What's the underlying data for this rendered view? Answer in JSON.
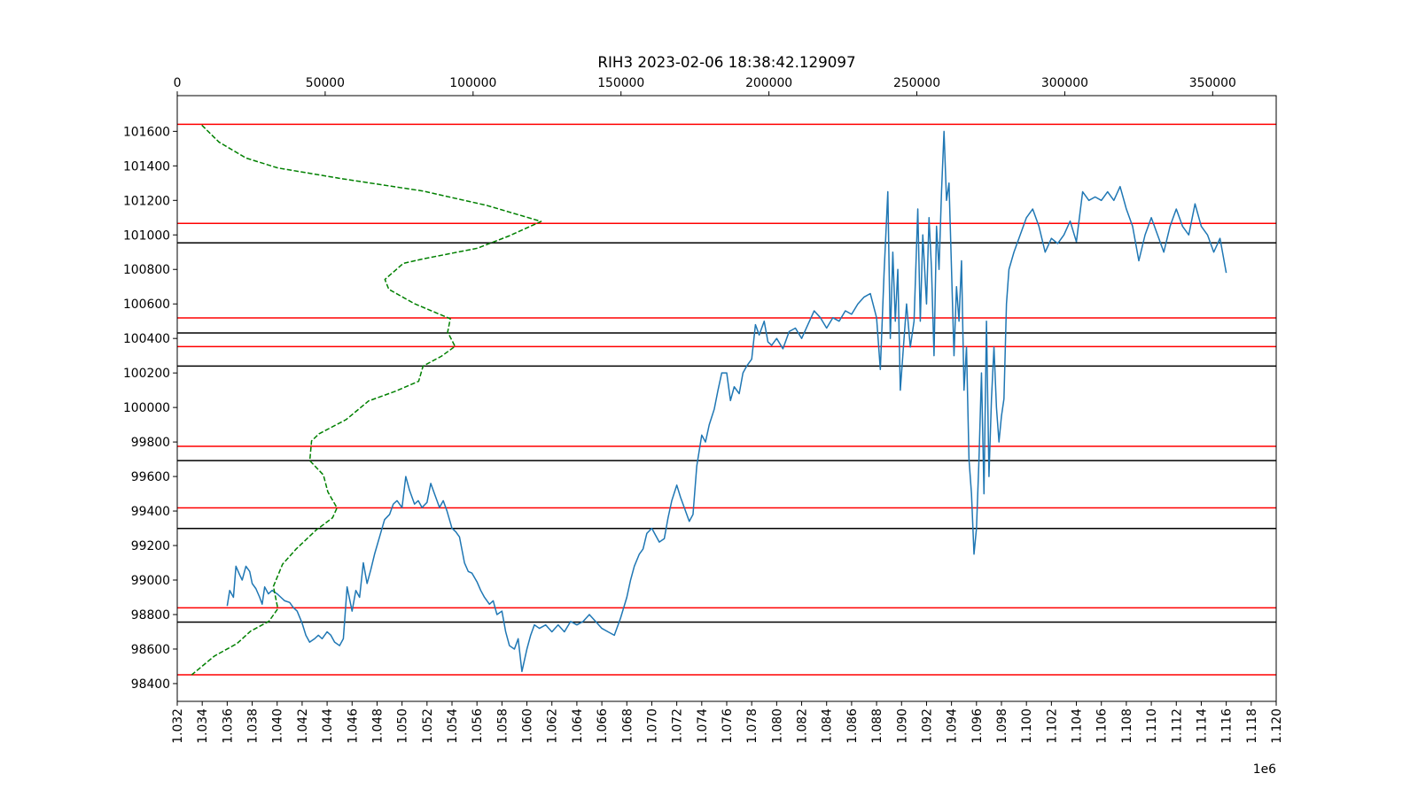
{
  "chart_data": {
    "type": "line",
    "title": "RIH3 2023-02-06 18:38:42.129097",
    "x_offset_label": "1e6",
    "xlim": [
      1032000,
      1120000
    ],
    "xticks": [
      {
        "value": 1032000,
        "label": "1.032"
      },
      {
        "value": 1034000,
        "label": "1.034"
      },
      {
        "value": 1036000,
        "label": "1.036"
      },
      {
        "value": 1038000,
        "label": "1.038"
      },
      {
        "value": 1040000,
        "label": "1.040"
      },
      {
        "value": 1042000,
        "label": "1.042"
      },
      {
        "value": 1044000,
        "label": "1.044"
      },
      {
        "value": 1046000,
        "label": "1.046"
      },
      {
        "value": 1048000,
        "label": "1.048"
      },
      {
        "value": 1050000,
        "label": "1.050"
      },
      {
        "value": 1052000,
        "label": "1.052"
      },
      {
        "value": 1054000,
        "label": "1.054"
      },
      {
        "value": 1056000,
        "label": "1.056"
      },
      {
        "value": 1058000,
        "label": "1.058"
      },
      {
        "value": 1060000,
        "label": "1.060"
      },
      {
        "value": 1062000,
        "label": "1.062"
      },
      {
        "value": 1064000,
        "label": "1.064"
      },
      {
        "value": 1066000,
        "label": "1.066"
      },
      {
        "value": 1068000,
        "label": "1.068"
      },
      {
        "value": 1070000,
        "label": "1.070"
      },
      {
        "value": 1072000,
        "label": "1.072"
      },
      {
        "value": 1074000,
        "label": "1.074"
      },
      {
        "value": 1076000,
        "label": "1.076"
      },
      {
        "value": 1078000,
        "label": "1.078"
      },
      {
        "value": 1080000,
        "label": "1.080"
      },
      {
        "value": 1082000,
        "label": "1.082"
      },
      {
        "value": 1084000,
        "label": "1.084"
      },
      {
        "value": 1086000,
        "label": "1.086"
      },
      {
        "value": 1088000,
        "label": "1.088"
      },
      {
        "value": 1090000,
        "label": "1.090"
      },
      {
        "value": 1092000,
        "label": "1.092"
      },
      {
        "value": 1094000,
        "label": "1.094"
      },
      {
        "value": 1096000,
        "label": "1.096"
      },
      {
        "value": 1098000,
        "label": "1.098"
      },
      {
        "value": 1100000,
        "label": "1.100"
      },
      {
        "value": 1102000,
        "label": "1.102"
      },
      {
        "value": 1104000,
        "label": "1.104"
      },
      {
        "value": 1106000,
        "label": "1.106"
      },
      {
        "value": 1108000,
        "label": "1.108"
      },
      {
        "value": 1110000,
        "label": "1.110"
      },
      {
        "value": 1112000,
        "label": "1.112"
      },
      {
        "value": 1114000,
        "label": "1.114"
      },
      {
        "value": 1116000,
        "label": "1.116"
      },
      {
        "value": 1118000,
        "label": "1.118"
      },
      {
        "value": 1120000,
        "label": "1.120"
      }
    ],
    "x2lim": [
      0,
      371472
    ],
    "x2ticks": [
      0,
      50000,
      100000,
      150000,
      200000,
      250000,
      300000,
      350000
    ],
    "ylim": [
      98297,
      101807
    ],
    "yticks": [
      98400,
      98600,
      98800,
      99000,
      99200,
      99400,
      99600,
      99800,
      100000,
      100200,
      100400,
      100600,
      100800,
      101000,
      101200,
      101400,
      101600
    ],
    "series": [
      {
        "color": "#1f77b4",
        "dashed": false,
        "x": [
          1036000,
          1036200,
          1036500,
          1036700,
          1037000,
          1037200,
          1037500,
          1037800,
          1038000,
          1038300,
          1038600,
          1038800,
          1039000,
          1039300,
          1039600,
          1040000,
          1040300,
          1040600,
          1041000,
          1041300,
          1041600,
          1042000,
          1042300,
          1042600,
          1043000,
          1043300,
          1043600,
          1044000,
          1044300,
          1044600,
          1045000,
          1045300,
          1045600,
          1046000,
          1046300,
          1046600,
          1046900,
          1047200,
          1047500,
          1047800,
          1048200,
          1048600,
          1049000,
          1049300,
          1049600,
          1050000,
          1050300,
          1050600,
          1051000,
          1051300,
          1051600,
          1052000,
          1052300,
          1052600,
          1053000,
          1053300,
          1053600,
          1054000,
          1054300,
          1054600,
          1055000,
          1055300,
          1055600,
          1056000,
          1056300,
          1056600,
          1057000,
          1057300,
          1057600,
          1058000,
          1058300,
          1058600,
          1059000,
          1059300,
          1059600,
          1060000,
          1060300,
          1060600,
          1061000,
          1061500,
          1062000,
          1062500,
          1063000,
          1063500,
          1064000,
          1064500,
          1065000,
          1065500,
          1066000,
          1066500,
          1067000,
          1067500,
          1068000,
          1068300,
          1068600,
          1069000,
          1069300,
          1069600,
          1070000,
          1070300,
          1070600,
          1071000,
          1071300,
          1071600,
          1072000,
          1072300,
          1072600,
          1073000,
          1073300,
          1073600,
          1074000,
          1074300,
          1074600,
          1075000,
          1075300,
          1075600,
          1076000,
          1076300,
          1076600,
          1077000,
          1077300,
          1077600,
          1078000,
          1078300,
          1078600,
          1079000,
          1079300,
          1079600,
          1080000,
          1080500,
          1081000,
          1081500,
          1082000,
          1082500,
          1083000,
          1083500,
          1084000,
          1084500,
          1085000,
          1085500,
          1086000,
          1086500,
          1087000,
          1087500,
          1088000,
          1088300,
          1088600,
          1088900,
          1089100,
          1089300,
          1089500,
          1089700,
          1089900,
          1090100,
          1090400,
          1090700,
          1091000,
          1091300,
          1091500,
          1091700,
          1092000,
          1092200,
          1092400,
          1092600,
          1092800,
          1093000,
          1093200,
          1093400,
          1093600,
          1093800,
          1094000,
          1094200,
          1094400,
          1094600,
          1094800,
          1095000,
          1095200,
          1095400,
          1095600,
          1095800,
          1096000,
          1096200,
          1096400,
          1096600,
          1096800,
          1097000,
          1097200,
          1097400,
          1097600,
          1097800,
          1098000,
          1098200,
          1098400,
          1098600,
          1098800,
          1099000,
          1099500,
          1100000,
          1100500,
          1101000,
          1101500,
          1102000,
          1102500,
          1103000,
          1103500,
          1104000,
          1104500,
          1105000,
          1105500,
          1106000,
          1106500,
          1107000,
          1107500,
          1108000,
          1108500,
          1109000,
          1109500,
          1110000,
          1110500,
          1111000,
          1111500,
          1112000,
          1112500,
          1113000,
          1113500,
          1114000,
          1114500,
          1115000,
          1115500,
          1116000
        ],
        "values": [
          98850,
          98940,
          98900,
          99080,
          99030,
          99000,
          99080,
          99050,
          98980,
          98950,
          98900,
          98860,
          98960,
          98920,
          98940,
          98920,
          98900,
          98880,
          98870,
          98840,
          98820,
          98750,
          98680,
          98640,
          98660,
          98680,
          98660,
          98700,
          98680,
          98640,
          98620,
          98660,
          98960,
          98820,
          98940,
          98900,
          99100,
          98980,
          99060,
          99150,
          99250,
          99350,
          99380,
          99440,
          99460,
          99420,
          99600,
          99520,
          99440,
          99460,
          99420,
          99450,
          99560,
          99500,
          99420,
          99460,
          99400,
          99300,
          99280,
          99250,
          99100,
          99050,
          99040,
          98990,
          98940,
          98900,
          98860,
          98880,
          98800,
          98820,
          98700,
          98620,
          98600,
          98660,
          98470,
          98600,
          98680,
          98740,
          98720,
          98740,
          98700,
          98740,
          98700,
          98760,
          98740,
          98760,
          98800,
          98760,
          98720,
          98700,
          98680,
          98780,
          98900,
          99000,
          99080,
          99150,
          99180,
          99270,
          99300,
          99260,
          99220,
          99240,
          99360,
          99460,
          99550,
          99480,
          99420,
          99340,
          99380,
          99660,
          99840,
          99800,
          99900,
          99990,
          100100,
          100200,
          100200,
          100040,
          100120,
          100080,
          100200,
          100240,
          100280,
          100480,
          100420,
          100500,
          100380,
          100360,
          100400,
          100340,
          100440,
          100460,
          100400,
          100480,
          100560,
          100520,
          100460,
          100520,
          100500,
          100560,
          100540,
          100600,
          100640,
          100660,
          100520,
          100220,
          100780,
          101250,
          100400,
          100900,
          100500,
          100800,
          100100,
          100300,
          100600,
          100350,
          100500,
          101150,
          100500,
          101000,
          100600,
          101100,
          100800,
          100300,
          101050,
          100800,
          101250,
          101600,
          101200,
          101300,
          100800,
          100300,
          100700,
          100500,
          100850,
          100100,
          100350,
          99700,
          99500,
          99150,
          99300,
          99700,
          100200,
          99500,
          100500,
          99600,
          100050,
          100350,
          100000,
          99800,
          99950,
          100050,
          100600,
          100800,
          100850,
          100900,
          101000,
          101100,
          101150,
          101050,
          100900,
          100980,
          100950,
          101000,
          101080,
          100960,
          101250,
          101200,
          101220,
          101200,
          101250,
          101200,
          101280,
          101150,
          101050,
          100850,
          101000,
          101100,
          101000,
          100900,
          101050,
          101150,
          101050,
          101000,
          101180,
          101050,
          101000,
          100900,
          100980,
          100780
        ]
      },
      {
        "color": "green",
        "dashed": true,
        "axis": "x2",
        "x": [
          8300,
          14100,
          23300,
          34000,
          55500,
          83100,
          104600,
          123000,
          112300,
          101500,
          83100,
          76400,
          70200,
          71500,
          80100,
          92300,
          91400,
          93900,
          89300,
          83100,
          81600,
          73900,
          64700,
          57100,
          47900,
          45400,
          44800,
          49400,
          50900,
          54000,
          52500,
          46900,
          40200,
          35600,
          32500,
          34000,
          31000,
          24800,
          20200,
          12600,
          4900
        ],
        "values": [
          101636,
          101538,
          101445,
          101388,
          101326,
          101254,
          101171,
          101078,
          100995,
          100923,
          100861,
          100835,
          100742,
          100685,
          100602,
          100514,
          100437,
          100354,
          100297,
          100240,
          100152,
          100095,
          100038,
          99930,
          99847,
          99806,
          99692,
          99609,
          99511,
          99418,
          99361,
          99289,
          99180,
          99092,
          98963,
          98834,
          98761,
          98704,
          98632,
          98560,
          98451
        ]
      }
    ],
    "horizontal_lines": [
      {
        "color": "red",
        "values": [
          101641,
          101067,
          100519,
          100353,
          99775,
          99418,
          98839,
          98451
        ]
      },
      {
        "color": "black",
        "values": [
          100954,
          100432,
          100240,
          99692,
          99299,
          98756
        ]
      }
    ]
  }
}
